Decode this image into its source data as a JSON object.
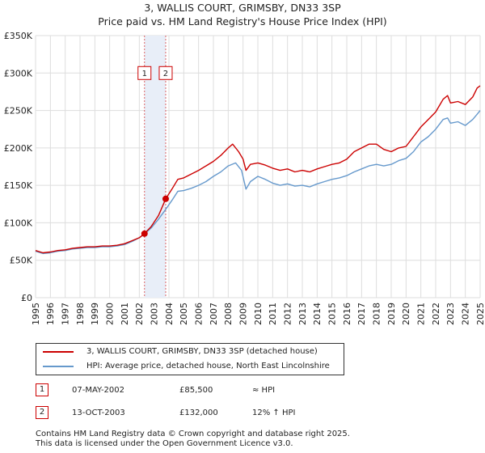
{
  "title_line1": "3, WALLIS COURT, GRIMSBY, DN33 3SP",
  "title_line2": "Price paid vs. HM Land Registry's House Price Index (HPI)",
  "colors": {
    "property": "#cc0000",
    "hpi": "#6699cc",
    "band": "#e8eef8",
    "marker_box": "#cc0000",
    "grid": "#dddddd"
  },
  "chart_data": {
    "type": "line",
    "x_range": [
      1995,
      2025
    ],
    "ylim": [
      0,
      350000
    ],
    "y_ticks": [
      {
        "value": 0,
        "label": "£0"
      },
      {
        "value": 50000,
        "label": "£50K"
      },
      {
        "value": 100000,
        "label": "£100K"
      },
      {
        "value": 150000,
        "label": "£150K"
      },
      {
        "value": 200000,
        "label": "£200K"
      },
      {
        "value": 250000,
        "label": "£250K"
      },
      {
        "value": 300000,
        "label": "£300K"
      },
      {
        "value": 350000,
        "label": "£350K"
      }
    ],
    "x_ticks": [
      "1995",
      "1996",
      "1997",
      "1998",
      "1999",
      "2000",
      "2001",
      "2002",
      "2003",
      "2004",
      "2005",
      "2006",
      "2007",
      "2008",
      "2009",
      "2010",
      "2011",
      "2012",
      "2013",
      "2014",
      "2015",
      "2016",
      "2017",
      "2018",
      "2019",
      "2020",
      "2021",
      "2022",
      "2023",
      "2024",
      "2025"
    ],
    "grid": true,
    "shaded_span": [
      2002.35,
      2003.78
    ],
    "series": [
      {
        "name": "3, WALLIS COURT, GRIMSBY, DN33 3SP (detached house)",
        "points": [
          [
            1995.0,
            63000
          ],
          [
            1995.5,
            60000
          ],
          [
            1996.0,
            61000
          ],
          [
            1996.5,
            63000
          ],
          [
            1997.0,
            64000
          ],
          [
            1997.5,
            66000
          ],
          [
            1998.0,
            67000
          ],
          [
            1998.5,
            68000
          ],
          [
            1999.0,
            68000
          ],
          [
            1999.5,
            69000
          ],
          [
            2000.0,
            69000
          ],
          [
            2000.5,
            70000
          ],
          [
            2001.0,
            72000
          ],
          [
            2001.5,
            76000
          ],
          [
            2002.0,
            80000
          ],
          [
            2002.35,
            85500
          ],
          [
            2002.8,
            95000
          ],
          [
            2003.3,
            110000
          ],
          [
            2003.78,
            132000
          ],
          [
            2004.2,
            145000
          ],
          [
            2004.6,
            158000
          ],
          [
            2005.0,
            160000
          ],
          [
            2005.5,
            165000
          ],
          [
            2006.0,
            170000
          ],
          [
            2006.5,
            176000
          ],
          [
            2007.0,
            182000
          ],
          [
            2007.5,
            190000
          ],
          [
            2008.0,
            200000
          ],
          [
            2008.3,
            205000
          ],
          [
            2008.7,
            195000
          ],
          [
            2009.0,
            185000
          ],
          [
            2009.2,
            170000
          ],
          [
            2009.5,
            178000
          ],
          [
            2010.0,
            180000
          ],
          [
            2010.5,
            177000
          ],
          [
            2011.0,
            173000
          ],
          [
            2011.5,
            170000
          ],
          [
            2012.0,
            172000
          ],
          [
            2012.5,
            168000
          ],
          [
            2013.0,
            170000
          ],
          [
            2013.5,
            168000
          ],
          [
            2014.0,
            172000
          ],
          [
            2014.5,
            175000
          ],
          [
            2015.0,
            178000
          ],
          [
            2015.5,
            180000
          ],
          [
            2016.0,
            185000
          ],
          [
            2016.5,
            195000
          ],
          [
            2017.0,
            200000
          ],
          [
            2017.5,
            205000
          ],
          [
            2018.0,
            205000
          ],
          [
            2018.5,
            198000
          ],
          [
            2019.0,
            195000
          ],
          [
            2019.5,
            200000
          ],
          [
            2020.0,
            202000
          ],
          [
            2020.5,
            215000
          ],
          [
            2021.0,
            228000
          ],
          [
            2021.5,
            238000
          ],
          [
            2022.0,
            248000
          ],
          [
            2022.5,
            265000
          ],
          [
            2022.8,
            270000
          ],
          [
            2023.0,
            260000
          ],
          [
            2023.5,
            262000
          ],
          [
            2024.0,
            258000
          ],
          [
            2024.5,
            268000
          ],
          [
            2024.8,
            280000
          ],
          [
            2025.0,
            283000
          ]
        ]
      },
      {
        "name": "HPI: Average price, detached house, North East Lincolnshire",
        "points": [
          [
            1995.0,
            62000
          ],
          [
            1995.5,
            59000
          ],
          [
            1996.0,
            60000
          ],
          [
            1996.5,
            62000
          ],
          [
            1997.0,
            63000
          ],
          [
            1997.5,
            65000
          ],
          [
            1998.0,
            66000
          ],
          [
            1998.5,
            67000
          ],
          [
            1999.0,
            67000
          ],
          [
            1999.5,
            68000
          ],
          [
            2000.0,
            68000
          ],
          [
            2000.5,
            69000
          ],
          [
            2001.0,
            71000
          ],
          [
            2001.5,
            75000
          ],
          [
            2002.0,
            80000
          ],
          [
            2002.35,
            85000
          ],
          [
            2002.8,
            93000
          ],
          [
            2003.3,
            105000
          ],
          [
            2003.78,
            118000
          ],
          [
            2004.2,
            130000
          ],
          [
            2004.6,
            142000
          ],
          [
            2005.0,
            143000
          ],
          [
            2005.5,
            146000
          ],
          [
            2006.0,
            150000
          ],
          [
            2006.5,
            155000
          ],
          [
            2007.0,
            162000
          ],
          [
            2007.5,
            168000
          ],
          [
            2008.0,
            176000
          ],
          [
            2008.5,
            180000
          ],
          [
            2008.9,
            170000
          ],
          [
            2009.2,
            145000
          ],
          [
            2009.5,
            155000
          ],
          [
            2010.0,
            162000
          ],
          [
            2010.5,
            158000
          ],
          [
            2011.0,
            153000
          ],
          [
            2011.5,
            150000
          ],
          [
            2012.0,
            152000
          ],
          [
            2012.5,
            149000
          ],
          [
            2013.0,
            150000
          ],
          [
            2013.5,
            148000
          ],
          [
            2014.0,
            152000
          ],
          [
            2014.5,
            155000
          ],
          [
            2015.0,
            158000
          ],
          [
            2015.5,
            160000
          ],
          [
            2016.0,
            163000
          ],
          [
            2016.5,
            168000
          ],
          [
            2017.0,
            172000
          ],
          [
            2017.5,
            176000
          ],
          [
            2018.0,
            178000
          ],
          [
            2018.5,
            176000
          ],
          [
            2019.0,
            178000
          ],
          [
            2019.5,
            183000
          ],
          [
            2020.0,
            186000
          ],
          [
            2020.5,
            195000
          ],
          [
            2021.0,
            208000
          ],
          [
            2021.5,
            215000
          ],
          [
            2022.0,
            225000
          ],
          [
            2022.5,
            238000
          ],
          [
            2022.8,
            240000
          ],
          [
            2023.0,
            233000
          ],
          [
            2023.5,
            235000
          ],
          [
            2024.0,
            230000
          ],
          [
            2024.5,
            238000
          ],
          [
            2024.8,
            245000
          ],
          [
            2025.0,
            250000
          ]
        ]
      }
    ],
    "sales": [
      {
        "id": "1",
        "x": 2002.35,
        "price": 85500
      },
      {
        "id": "2",
        "x": 2003.78,
        "price": 132000
      }
    ],
    "marker_label_value": 300000
  },
  "legend": {
    "property_label": "3, WALLIS COURT, GRIMSBY, DN33 3SP (detached house)",
    "hpi_label": "HPI: Average price, detached house, North East Lincolnshire"
  },
  "transactions": [
    {
      "num": "1",
      "date": "07-MAY-2002",
      "price": "£85,500",
      "hpi": "≈ HPI"
    },
    {
      "num": "2",
      "date": "13-OCT-2003",
      "price": "£132,000",
      "hpi": "12% ↑ HPI"
    }
  ],
  "footer_line1": "Contains HM Land Registry data © Crown copyright and database right 2025.",
  "footer_line2": "This data is licensed under the Open Government Licence v3.0."
}
